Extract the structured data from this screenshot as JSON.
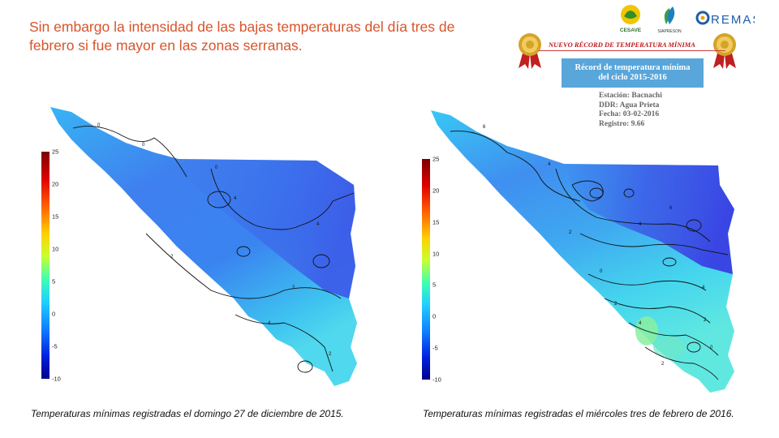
{
  "slide": {
    "title": "Sin embargo la intensidad de las bajas temperaturas del día tres de febrero si fue mayor en las zonas serranas."
  },
  "captions": {
    "left": "Temperaturas mínimas registradas el domingo 27 de diciembre de 2015.",
    "right": "Temperaturas mínimas registradas el miércoles tres de febrero de 2016."
  },
  "colorbar": {
    "ticks": [
      "25",
      "20",
      "15",
      "10",
      "5",
      "0",
      "-5",
      "-10"
    ],
    "min": -10,
    "max": 25
  },
  "maps": {
    "left_contour_labels": [
      "0",
      "0",
      "2",
      "2",
      "4",
      "4",
      "4",
      "2",
      "0"
    ],
    "right_contour_labels": [
      "6",
      "4",
      "2",
      "0",
      "2",
      "4",
      "6",
      "4",
      "2",
      "0",
      "2",
      "4"
    ]
  },
  "record": {
    "banner": "NUEVO RÉCORD DE TEMPERATURA MÍNIMA",
    "box_line1": "Récord de temperatura mínima",
    "box_line2": "del ciclo 2015-2016",
    "estacion": "Estación: Bacnachi",
    "ddr": "DDR: Agua Prieta",
    "fecha": "Fecha: 03-02-2016",
    "registro": "Registro:  9.66"
  },
  "logos": {
    "cesave": "CESAVE",
    "siapresor": "SIAPRESON",
    "remas": "REMAS"
  },
  "colors": {
    "title": "#d9542b",
    "record_box": "#58a6da",
    "banner": "#c01818",
    "map_deep": "#3a4fe6",
    "map_mid": "#3b8ff0",
    "map_light": "#40d8f0",
    "map_warm": "#7ff0b0"
  }
}
